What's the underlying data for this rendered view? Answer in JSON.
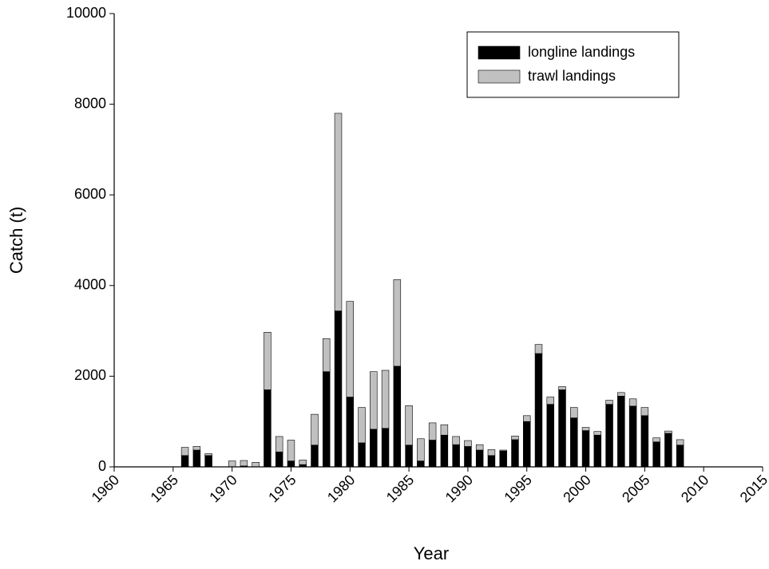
{
  "chart_data": {
    "type": "bar",
    "stacked": true,
    "x_label": "Year",
    "y_label": "Catch (t)",
    "x": [
      1966,
      1967,
      1968,
      1970,
      1971,
      1972,
      1973,
      1974,
      1975,
      1976,
      1977,
      1978,
      1979,
      1980,
      1981,
      1982,
      1983,
      1984,
      1985,
      1986,
      1987,
      1988,
      1989,
      1990,
      1991,
      1992,
      1993,
      1994,
      1995,
      1996,
      1997,
      1998,
      1999,
      2000,
      2001,
      2002,
      2003,
      2004,
      2005,
      2006,
      2007,
      2008
    ],
    "series": [
      {
        "name": "longline landings",
        "color": "#000000",
        "values": [
          250,
          370,
          250,
          0,
          20,
          0,
          1700,
          330,
          130,
          50,
          480,
          2100,
          3440,
          1540,
          530,
          830,
          850,
          2220,
          480,
          130,
          590,
          700,
          490,
          450,
          370,
          250,
          350,
          600,
          1000,
          2500,
          1380,
          1700,
          1080,
          800,
          700,
          1380,
          1560,
          1340,
          1130,
          550,
          740,
          480
        ]
      },
      {
        "name": "trawl landings",
        "color": "#c0c0c0",
        "values": [
          180,
          80,
          40,
          130,
          120,
          100,
          1270,
          340,
          460,
          100,
          680,
          730,
          4360,
          2110,
          780,
          1270,
          1280,
          1910,
          870,
          490,
          380,
          230,
          180,
          130,
          120,
          130,
          20,
          80,
          130,
          200,
          160,
          70,
          230,
          70,
          80,
          90,
          80,
          160,
          180,
          90,
          50,
          120
        ]
      }
    ],
    "xlim": [
      1960,
      2015
    ],
    "xticks": [
      1960,
      1965,
      1970,
      1975,
      1980,
      1985,
      1990,
      1995,
      2000,
      2005,
      2010,
      2015
    ],
    "ylim": [
      0,
      10000
    ],
    "yticks": [
      0,
      2000,
      4000,
      6000,
      8000,
      10000
    ],
    "legend": "top-right",
    "grid": false
  }
}
